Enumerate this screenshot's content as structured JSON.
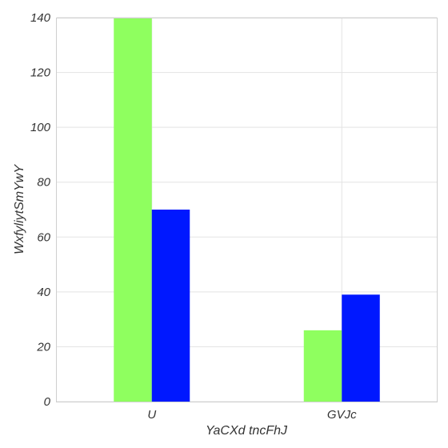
{
  "chart_data": {
    "type": "bar",
    "title": "",
    "xlabel": "YaCXd  tncFhJ",
    "ylabel": "WxfyliytSmYwY",
    "categories": [
      "U",
      "GVJc"
    ],
    "series": [
      {
        "values": [
          140,
          26
        ],
        "color": "#8fff5f"
      },
      {
        "values": [
          70,
          39
        ],
        "color": "#0018ff"
      }
    ],
    "ylim": [
      0,
      140
    ],
    "yticks": [
      0,
      20,
      40,
      60,
      80,
      100,
      120,
      140
    ],
    "grid": true,
    "legend": "none",
    "background": "#ffffff"
  }
}
